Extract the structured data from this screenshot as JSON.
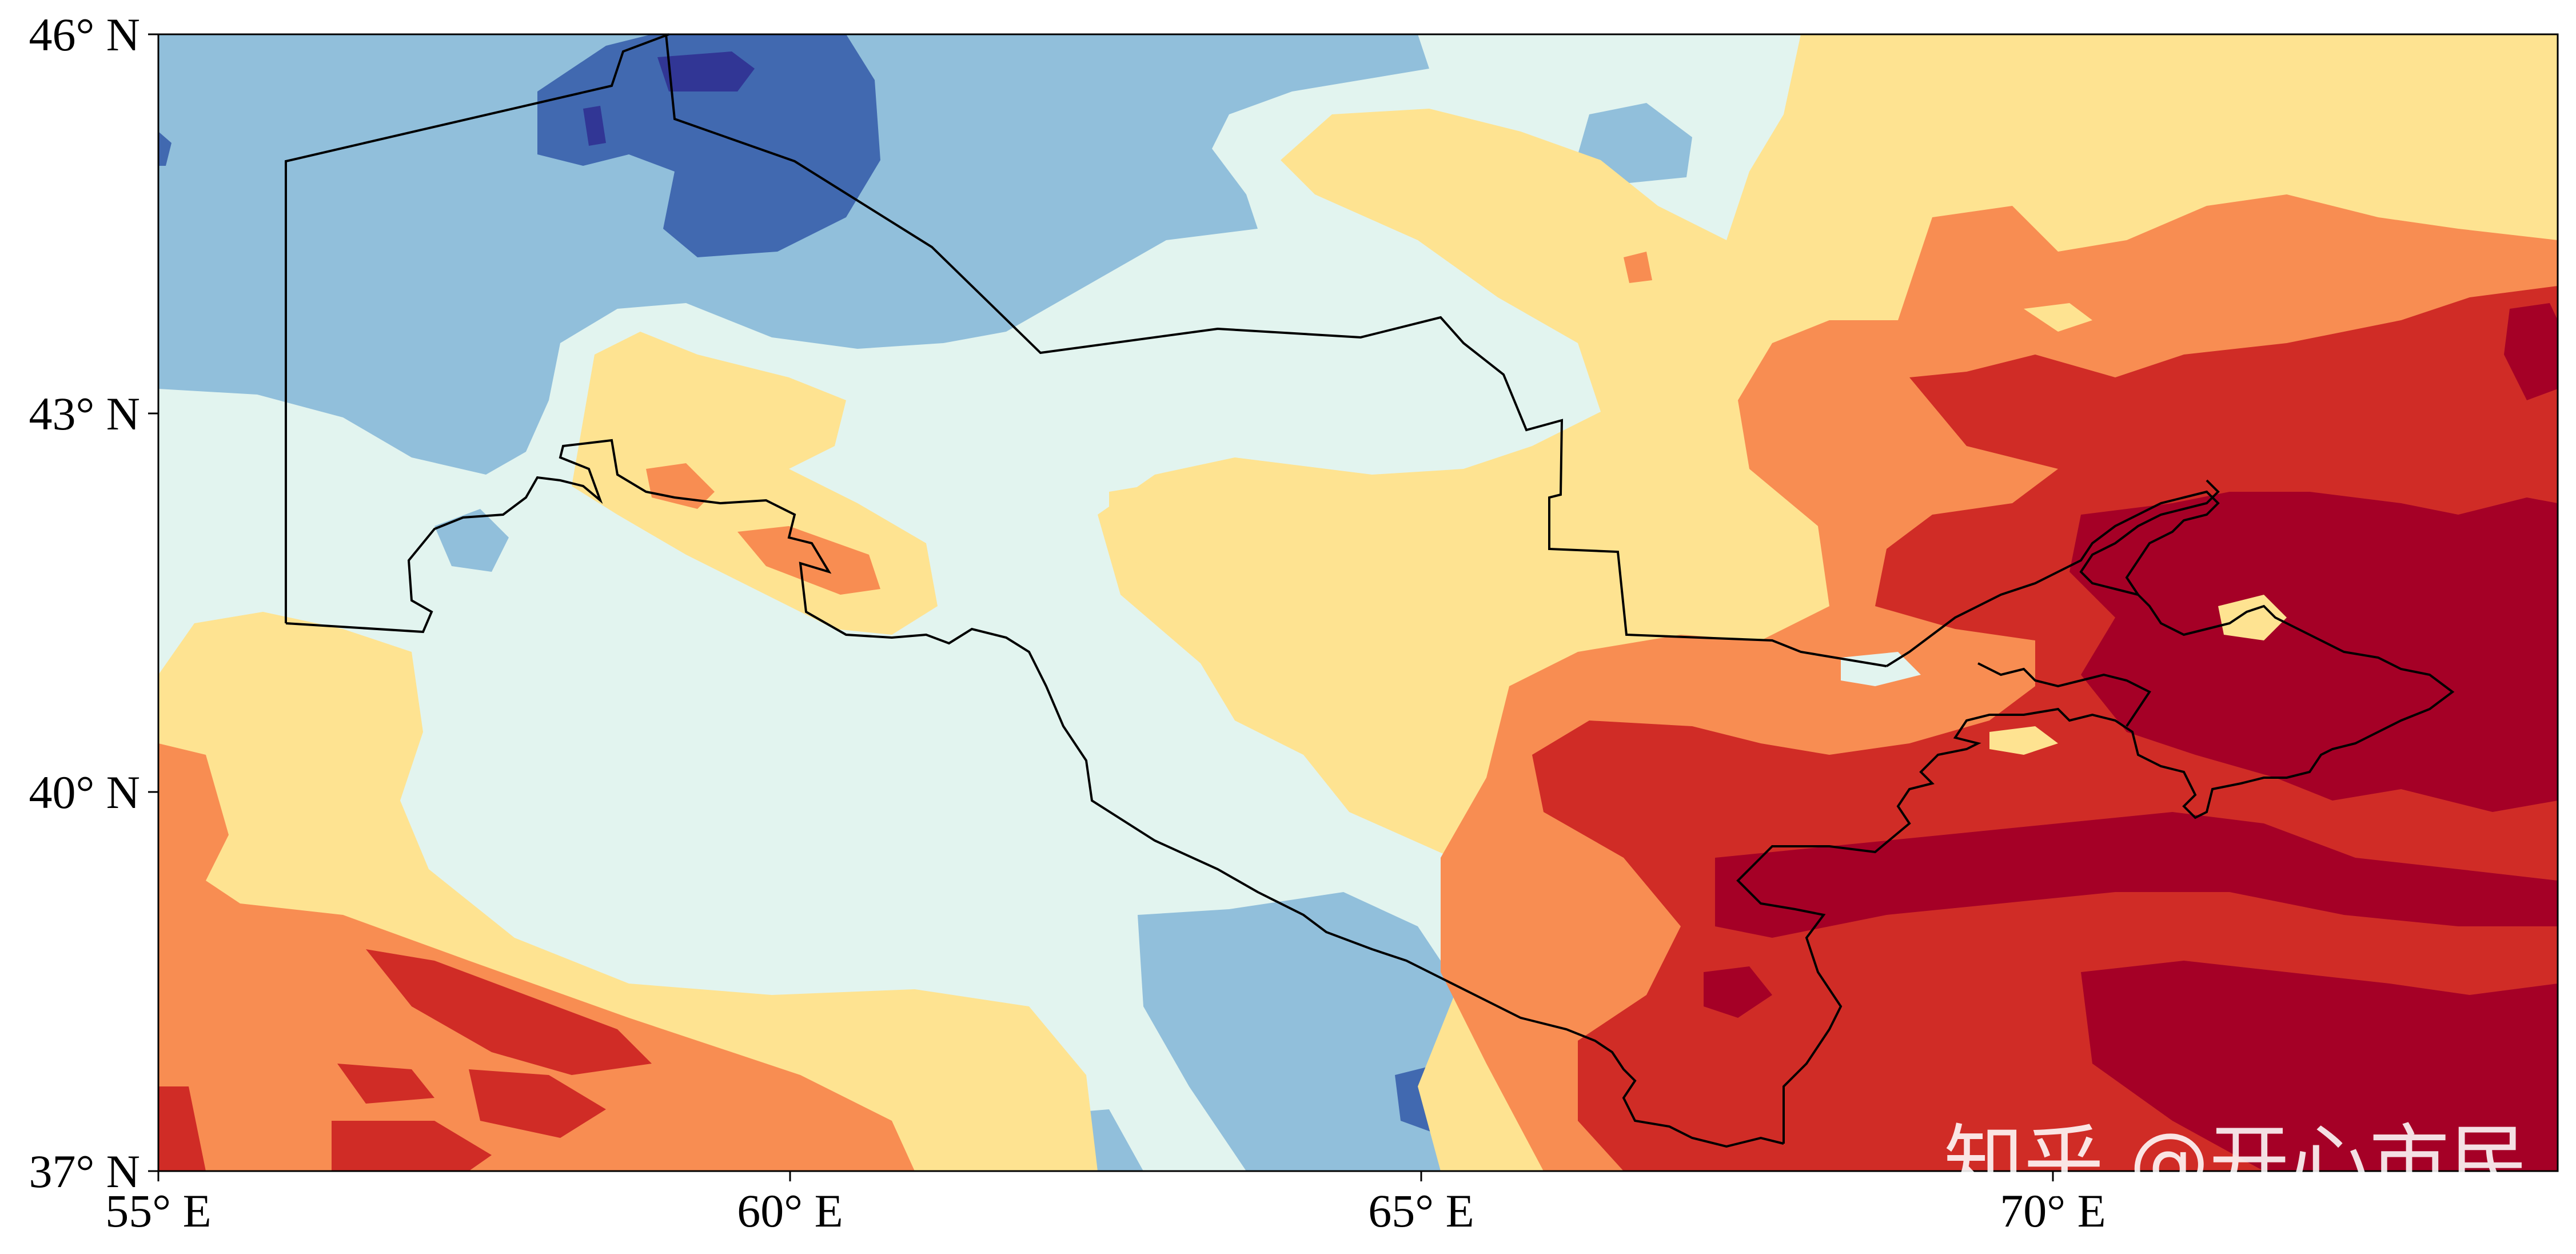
{
  "map": {
    "lon_ticks": [
      "55° E",
      "60° E",
      "65° E",
      "70° E"
    ],
    "lat_ticks": [
      "46° N",
      "43° N",
      "40° N",
      "37° N"
    ],
    "lon_range": [
      55,
      74
    ],
    "lat_range": [
      37,
      46
    ],
    "colormap": "RdYlBu_r",
    "levels": [
      {
        "name": "deep-blue",
        "color": "#313695"
      },
      {
        "name": "blue",
        "color": "#4169b0"
      },
      {
        "name": "light-blue",
        "color": "#91bfdb"
      },
      {
        "name": "pale-cyan",
        "color": "#e2f4ef"
      },
      {
        "name": "pale-yellow",
        "color": "#fee391"
      },
      {
        "name": "orange",
        "color": "#f88d52"
      },
      {
        "name": "red",
        "color": "#d02c26"
      },
      {
        "name": "dark-red",
        "color": "#a50026"
      }
    ],
    "border_color": "#000000"
  },
  "watermark": {
    "text": "知乎 @开心市民"
  }
}
